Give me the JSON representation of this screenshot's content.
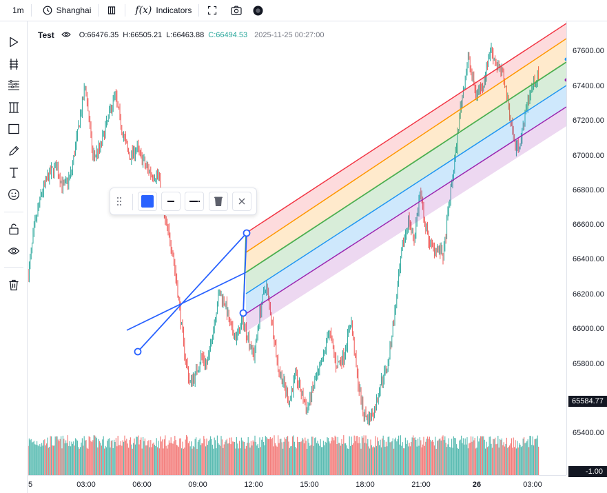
{
  "topbar": {
    "interval": "1m",
    "timezone": "Shanghai",
    "indicators_label": "Indicators",
    "fx_label": "f(x)"
  },
  "legend": {
    "symbol": "Test",
    "open": "O:66476.35",
    "high": "H:66505.21",
    "low": "L:66463.88",
    "close": "C:66494.53",
    "datetime": "2025-11-25 00:27:00"
  },
  "price_scale": {
    "labels": [
      "67600.00",
      "67400.00",
      "67200.00",
      "67000.00",
      "66800.00",
      "66600.00",
      "66400.00",
      "66200.00",
      "66000.00",
      "65800.00",
      "65400.00"
    ],
    "current_price_tag": "65584.77",
    "volume_tag": "-1.00"
  },
  "time_scale": {
    "labels": [
      "5",
      "03:00",
      "06:00",
      "09:00",
      "12:00",
      "15:00",
      "18:00",
      "21:00",
      "26",
      "03:00"
    ]
  },
  "colors": {
    "up": "#26a69a",
    "down": "#ef5350",
    "tool_blue": "#2962ff",
    "band_red": "#f23645",
    "band_orange": "#ff9800",
    "band_green": "#4caf50",
    "band_blue": "#2196f3",
    "band_purple": "#9c27b0"
  },
  "chart_data": {
    "type": "candlestick",
    "interval": "1m",
    "ylim": [
      65300,
      67700
    ],
    "x_ticks": [
      "5",
      "03:00",
      "06:00",
      "09:00",
      "12:00",
      "15:00",
      "18:00",
      "21:00",
      "26",
      "03:00"
    ],
    "price_path": [
      [
        0,
        66300
      ],
      [
        8,
        66550
      ],
      [
        18,
        66750
      ],
      [
        28,
        66850
      ],
      [
        38,
        66900
      ],
      [
        48,
        66780
      ],
      [
        58,
        66850
      ],
      [
        68,
        67100
      ],
      [
        78,
        67350
      ],
      [
        88,
        66950
      ],
      [
        98,
        67000
      ],
      [
        108,
        67150
      ],
      [
        118,
        67300
      ],
      [
        128,
        67100
      ],
      [
        138,
        66950
      ],
      [
        148,
        67000
      ],
      [
        160,
        66900
      ],
      [
        170,
        66850
      ],
      [
        178,
        66850
      ],
      [
        186,
        66600
      ],
      [
        196,
        66450
      ],
      [
        204,
        66200
      ],
      [
        212,
        65900
      ],
      [
        220,
        65700
      ],
      [
        228,
        65750
      ],
      [
        236,
        65850
      ],
      [
        244,
        65800
      ],
      [
        252,
        66000
      ],
      [
        260,
        66200
      ],
      [
        268,
        66150
      ],
      [
        276,
        66000
      ],
      [
        284,
        65950
      ],
      [
        292,
        66050
      ],
      [
        300,
        65950
      ],
      [
        308,
        65850
      ],
      [
        316,
        66100
      ],
      [
        324,
        66250
      ],
      [
        332,
        66050
      ],
      [
        340,
        65800
      ],
      [
        348,
        65700
      ],
      [
        356,
        65600
      ],
      [
        364,
        65750
      ],
      [
        372,
        65650
      ],
      [
        380,
        65550
      ],
      [
        390,
        65700
      ],
      [
        400,
        65800
      ],
      [
        410,
        66000
      ],
      [
        420,
        65800
      ],
      [
        430,
        65850
      ],
      [
        440,
        66050
      ],
      [
        448,
        65750
      ],
      [
        456,
        65550
      ],
      [
        464,
        65500
      ],
      [
        472,
        65550
      ],
      [
        480,
        65700
      ],
      [
        490,
        65800
      ],
      [
        500,
        66100
      ],
      [
        510,
        66450
      ],
      [
        518,
        66600
      ],
      [
        526,
        66500
      ],
      [
        534,
        66750
      ],
      [
        542,
        66550
      ],
      [
        550,
        66450
      ],
      [
        558,
        66450
      ],
      [
        566,
        66400
      ],
      [
        574,
        66700
      ],
      [
        582,
        66950
      ],
      [
        590,
        67250
      ],
      [
        600,
        67500
      ],
      [
        610,
        67300
      ],
      [
        620,
        67350
      ],
      [
        630,
        67550
      ],
      [
        640,
        67450
      ],
      [
        648,
        67400
      ],
      [
        656,
        67200
      ],
      [
        664,
        67000
      ],
      [
        672,
        67050
      ],
      [
        680,
        67250
      ],
      [
        688,
        67350
      ],
      [
        696,
        67400
      ]
    ],
    "current_price": 65584.77,
    "ohlc_at_cursor": {
      "open": 66476.35,
      "high": 66505.21,
      "low": 66463.88,
      "close": 66494.53
    }
  }
}
